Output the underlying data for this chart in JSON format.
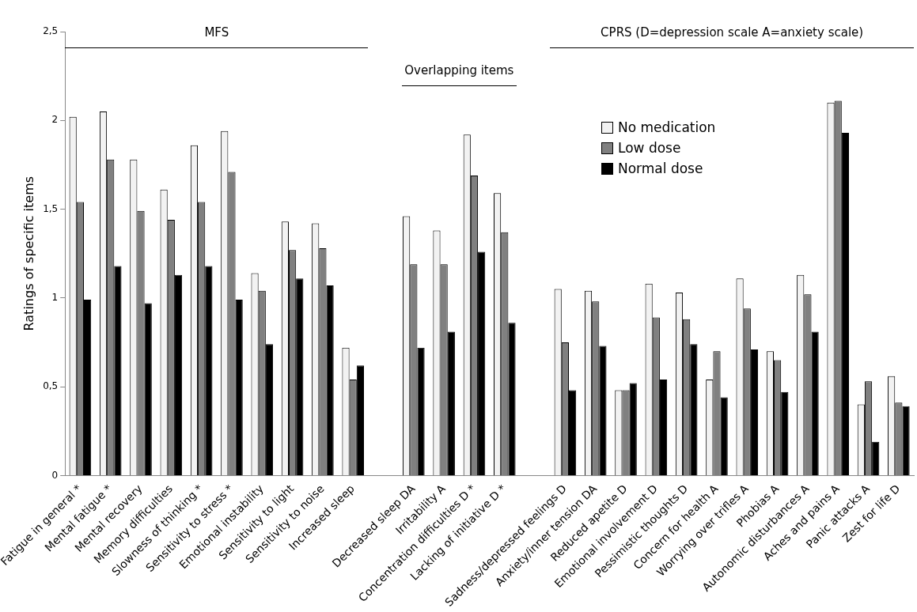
{
  "chart_data": {
    "type": "bar",
    "ylabel": "Ratings of specific items",
    "annotations": [
      "MFS",
      "Overlapping items",
      "CPRS (D=depression scale A=anxiety scale)"
    ],
    "categories": [
      "Fatigue in general *",
      "Mental fatigue *",
      "Mental recovery",
      "Memory difficulties",
      "Slowness of thinking *",
      "Sensitivity to stress *",
      "Emotional instability",
      "Sensitivity to light",
      "Sensitivity to noise",
      "Increased sleep",
      null,
      "Decreased sleep DA",
      "Irritability A",
      "Concentration difficulties D *",
      "Lacking of initiative D *",
      null,
      "Sadness/depressed feelings D",
      "Anxiety/inner tension DA",
      "Reduced apetite D",
      "Emotional involvement D",
      "Pessimistic thoughts D",
      "Concern for health A",
      "Worrying over trifles A",
      "Phobias A",
      "Autonomic disturbances A",
      "Aches and pains A",
      "Panic attacks A",
      "Zest for life D"
    ],
    "series": [
      {
        "name": "No medication",
        "color": "#f2f2f2",
        "values": [
          2.02,
          2.05,
          1.78,
          1.61,
          1.86,
          1.94,
          1.14,
          1.43,
          1.42,
          0.72,
          null,
          1.46,
          1.38,
          1.92,
          1.59,
          null,
          1.05,
          1.04,
          0.48,
          1.08,
          1.03,
          0.54,
          1.11,
          0.7,
          1.13,
          2.1,
          0.4,
          0.56
        ]
      },
      {
        "name": "Low dose",
        "color": "#808080",
        "values": [
          1.54,
          1.78,
          1.49,
          1.44,
          1.54,
          1.71,
          1.04,
          1.27,
          1.28,
          0.54,
          null,
          1.19,
          1.19,
          1.69,
          1.37,
          null,
          0.75,
          0.98,
          0.48,
          0.89,
          0.88,
          0.7,
          0.94,
          0.65,
          1.02,
          2.11,
          0.53,
          0.41
        ]
      },
      {
        "name": "Normal dose",
        "color": "#000000",
        "values": [
          0.99,
          1.18,
          0.97,
          1.13,
          1.18,
          0.99,
          0.74,
          1.11,
          1.07,
          0.62,
          null,
          0.72,
          0.81,
          1.26,
          0.86,
          null,
          0.48,
          0.73,
          0.52,
          0.54,
          0.74,
          0.44,
          0.71,
          0.47,
          0.81,
          1.93,
          0.19,
          0.39
        ]
      }
    ],
    "ylim": [
      0,
      2.5
    ],
    "yticks": [
      0,
      {
        "value": 0.5,
        "label": "0,5"
      },
      1,
      {
        "value": 1.5,
        "label": "1,5"
      },
      2,
      {
        "value": 2.5,
        "label": "2,5"
      }
    ],
    "grid": false,
    "legend": "top right"
  }
}
